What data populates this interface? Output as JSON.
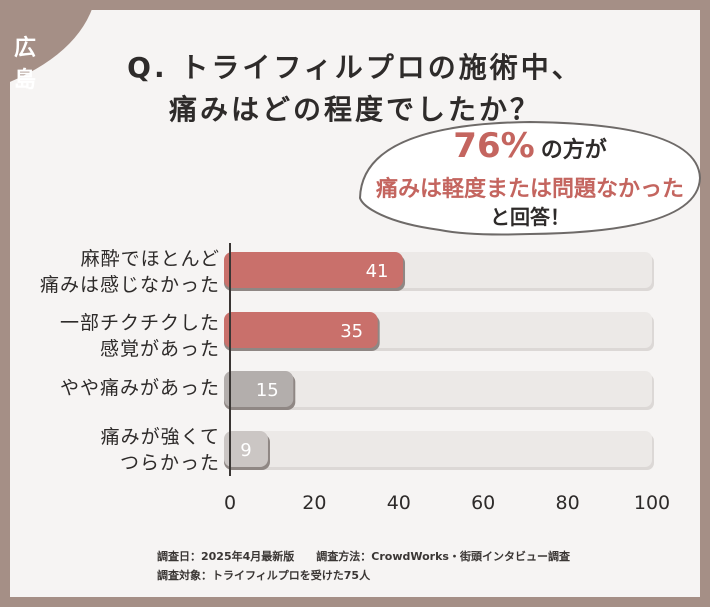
{
  "region_badge": "広島",
  "question": {
    "line1": "Q. トライフィルプロの施術中、",
    "line2": "痛みはどの程度でしたか？"
  },
  "callout": {
    "percent": "76%",
    "percent_tail": "の方が",
    "line2": "痛みは軽度または問題なかった",
    "line3": "と回答！"
  },
  "chart_data": {
    "type": "bar",
    "orientation": "horizontal",
    "categories": [
      [
        "麻酔でほとんど",
        "痛みは感じなかった"
      ],
      [
        "一部チクチクした",
        "感覚があった"
      ],
      [
        "やや痛みがあった"
      ],
      [
        "痛みが強くて",
        "つらかった"
      ]
    ],
    "values": [
      41,
      35,
      15,
      9
    ],
    "value_labels": [
      "41",
      "35",
      "15",
      "9"
    ],
    "xlim": [
      0,
      100
    ],
    "xticks": [
      "0",
      "20",
      "40",
      "60",
      "80",
      "100"
    ],
    "colors": [
      "#c9706b",
      "#c9706b",
      "#b3aeac",
      "#cbc6c4"
    ],
    "track_color": "#ece9e7"
  },
  "footer": {
    "line1": "調査日：2025年4月最新版　　調査方法：CrowdWorks・街頭インタビュー調査",
    "line2": "調査対象：トライフィルプロを受けた75人"
  }
}
